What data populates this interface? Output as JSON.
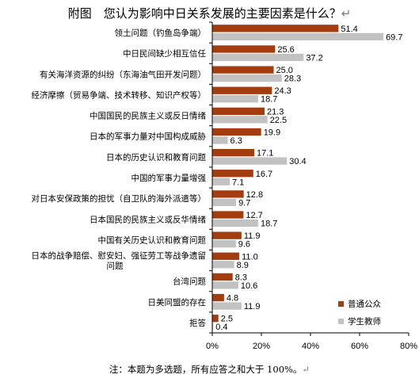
{
  "page": {
    "title": "附图　您认为影响中日关系发展的主要因素是什么？",
    "note": "注：本题为多选题，所有应答之和大于 100%。",
    "paragraph_mark": "↵"
  },
  "chart_data": {
    "type": "bar",
    "orientation": "horizontal",
    "title": "附图　您认为影响中日关系发展的主要因素是什么？",
    "xlabel": "",
    "ylabel": "",
    "xlim": [
      0,
      80
    ],
    "xticks": [
      "0%",
      "20%",
      "40%",
      "60%",
      "80%"
    ],
    "grid": false,
    "legend_position": "bottom-right",
    "categories": [
      "领土问题（钓鱼岛争端）",
      "中日民间缺少相互信任",
      "有关海洋资源的纠纷（东海油气田开发问题）",
      "经济摩擦（贸易争端、技术转移、知识产权等）",
      "中国国民的民族主义或反日情绪",
      "日本的军事力量对中国构成威胁",
      "日本的历史认识和教育问题",
      "中国的军事力量增强",
      "对日本安保政策的担忧（自卫队的海外派遣等）",
      "日本国民的民族主义或反华情绪",
      "中国有关历史认识和教育问题",
      "日本的战争赔偿、慰安妇、强征劳工等战争遗留问题",
      "台湾问题",
      "日美同盟的存在",
      "拒答"
    ],
    "category_lines": [
      [
        "领土问题（钓鱼岛争端）"
      ],
      [
        "中日民间缺少相互信任"
      ],
      [
        "有关海洋资源的纠纷（东海油气田开发问题）"
      ],
      [
        "经济摩擦（贸易争端、技术转移、知识产权等）"
      ],
      [
        "中国国民的民族主义或反日情绪"
      ],
      [
        "日本的军事力量对中国构成威胁"
      ],
      [
        "日本的历史认识和教育问题"
      ],
      [
        "中国的军事力量增强"
      ],
      [
        "对日本安保政策的担忧（自卫队的海外派遣等）"
      ],
      [
        "日本国民的民族主义或反华情绪"
      ],
      [
        "中国有关历史认识和教育问题"
      ],
      [
        "日本的战争赔偿、慰安妇、强征劳工等战争遗留",
        "问题"
      ],
      [
        "台湾问题"
      ],
      [
        "日美同盟的存在"
      ],
      [
        "拒答"
      ]
    ],
    "series": [
      {
        "name": "普通公众",
        "color": "#a33c0e",
        "values": [
          51.4,
          25.6,
          25.0,
          24.3,
          21.3,
          19.9,
          17.1,
          16.7,
          12.8,
          12.7,
          11.9,
          11.0,
          8.3,
          4.8,
          2.5
        ],
        "labels": [
          "51.4",
          "25.6",
          "25.0",
          "24.3",
          "21.3",
          "19.9",
          "17.1",
          "16.7",
          "12.8",
          "12.7",
          "11.9",
          "11.0",
          "8.3",
          "4.8",
          "2.5"
        ]
      },
      {
        "name": "学生教师",
        "color": "#c2c2c2",
        "values": [
          69.7,
          37.2,
          28.3,
          18.7,
          22.5,
          6.3,
          30.4,
          7.1,
          9.7,
          18.7,
          9.6,
          8.9,
          10.6,
          11.9,
          0.4
        ],
        "labels": [
          "69.7",
          "37.2",
          "28.3",
          "18.7",
          "22.5",
          "6.3",
          "30.4",
          "7.1",
          "9.7",
          "18.7",
          "9.6",
          "8.9",
          "10.6",
          "11.9",
          "0.4"
        ]
      }
    ]
  }
}
